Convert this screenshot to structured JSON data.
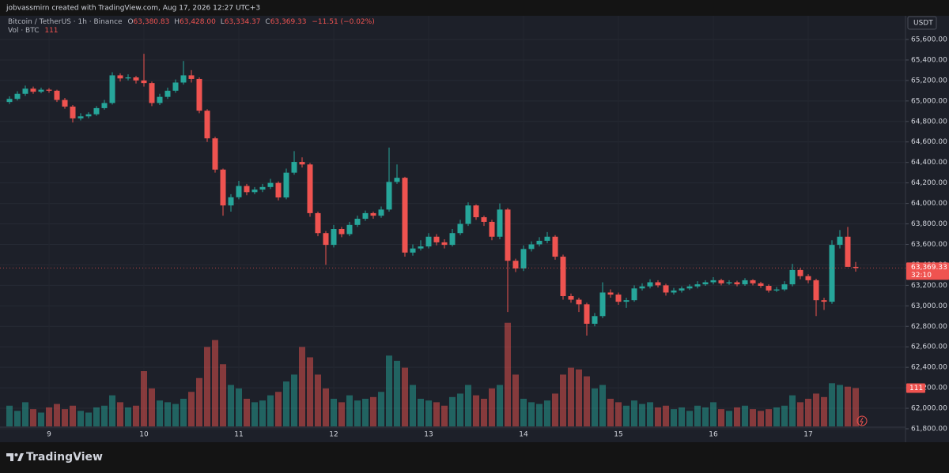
{
  "header": {
    "credit": "jobvassmirn created with TradingView.com, Aug 17, 2026 12:27 UTC+3"
  },
  "footer": {
    "brand": "TradingView"
  },
  "chart_data": {
    "type": "candlestick",
    "symbol": "Bitcoin / TetherUS · 1h · Binance",
    "legend_letters": [
      "O",
      "H",
      "L",
      "C"
    ],
    "legend_values": [
      "63,380.83",
      "63,428.00",
      "63,334.37",
      "63,369.33"
    ],
    "change_label": "−11.51 (−0.02%)",
    "volume_title": "Vol · BTC",
    "currency": "USDT",
    "last_price_label": "63,369.33",
    "countdown": "32:10",
    "up_color": "#26a69a",
    "down_color": "#ef5350",
    "grid": true,
    "ylim": [
      61800,
      65800
    ],
    "yticks": [
      {
        "value": 61800,
        "label": "61,800.00"
      },
      {
        "value": 62000,
        "label": "62,000.00"
      },
      {
        "value": 62200,
        "label": "62,200.00"
      },
      {
        "value": 62400,
        "label": "62,400.00"
      },
      {
        "value": 62600,
        "label": "62,600.00"
      },
      {
        "value": 62800,
        "label": "62,800.00"
      },
      {
        "value": 63000,
        "label": "63,000.00"
      },
      {
        "value": 63200,
        "label": "63,200.00"
      },
      {
        "value": 63400,
        "label": "63,400.00"
      },
      {
        "value": 63600,
        "label": "63,600.00"
      },
      {
        "value": 63800,
        "label": "63,800.00"
      },
      {
        "value": 64000,
        "label": "64,000.00"
      },
      {
        "value": 64200,
        "label": "64,200.00"
      },
      {
        "value": 64400,
        "label": "64,400.00"
      },
      {
        "value": 64600,
        "label": "64,600.00"
      },
      {
        "value": 64800,
        "label": "64,800.00"
      },
      {
        "value": 65000,
        "label": "65,000.00"
      },
      {
        "value": 65200,
        "label": "65,200.00"
      },
      {
        "value": 65400,
        "label": "65,400.00"
      },
      {
        "value": 65600,
        "label": "65,600.00"
      }
    ],
    "vlim": [
      0,
      320
    ],
    "categories": [
      null,
      null,
      null,
      null,
      null,
      "9",
      null,
      null,
      null,
      null,
      null,
      null,
      null,
      null,
      null,
      null,
      null,
      "10",
      null,
      null,
      null,
      null,
      null,
      null,
      null,
      null,
      null,
      null,
      null,
      "11",
      null,
      null,
      null,
      null,
      null,
      null,
      null,
      null,
      null,
      null,
      null,
      "12",
      null,
      null,
      null,
      null,
      null,
      null,
      null,
      null,
      null,
      null,
      null,
      "13",
      null,
      null,
      null,
      null,
      null,
      null,
      null,
      null,
      null,
      null,
      null,
      "14",
      null,
      null,
      null,
      null,
      null,
      null,
      null,
      null,
      null,
      null,
      null,
      "15",
      null,
      null,
      null,
      null,
      null,
      null,
      null,
      null,
      null,
      null,
      null,
      "16",
      null,
      null,
      null,
      null,
      null,
      null,
      null,
      null,
      null,
      null,
      null,
      "17",
      null,
      null,
      null,
      null,
      null,
      null
    ],
    "series": [
      {
        "name": "Bitcoin / TetherUS",
        "values": [
          [
            64990,
            65045,
            64970,
            65020
          ],
          [
            65020,
            65095,
            65005,
            65070
          ],
          [
            65070,
            65150,
            65050,
            65120
          ],
          [
            65120,
            65140,
            65070,
            65090
          ],
          [
            65090,
            65130,
            65075,
            65110
          ],
          [
            65110,
            65125,
            65080,
            65100
          ],
          [
            65100,
            65110,
            64990,
            65010
          ],
          [
            65010,
            65030,
            64925,
            64945
          ],
          [
            64945,
            64960,
            64790,
            64830
          ],
          [
            64830,
            64880,
            64810,
            64850
          ],
          [
            64850,
            64890,
            64830,
            64870
          ],
          [
            64870,
            64950,
            64855,
            64930
          ],
          [
            64930,
            65010,
            64915,
            64980
          ],
          [
            64980,
            65280,
            64965,
            65250
          ],
          [
            65250,
            65270,
            65190,
            65220
          ],
          [
            65220,
            65260,
            65200,
            65230
          ],
          [
            65230,
            65245,
            65170,
            65200
          ],
          [
            65200,
            65460,
            65140,
            65175
          ],
          [
            65175,
            65190,
            64950,
            64980
          ],
          [
            64980,
            65070,
            64960,
            65040
          ],
          [
            65040,
            65130,
            65020,
            65100
          ],
          [
            65100,
            65210,
            65080,
            65180
          ],
          [
            65180,
            65390,
            65160,
            65250
          ],
          [
            65250,
            65300,
            65180,
            65215
          ],
          [
            65215,
            65230,
            64880,
            64905
          ],
          [
            64905,
            64920,
            64600,
            64635
          ],
          [
            64635,
            64650,
            64300,
            64330
          ],
          [
            64330,
            64340,
            63880,
            63980
          ],
          [
            63980,
            64090,
            63920,
            64060
          ],
          [
            64060,
            64220,
            64040,
            64170
          ],
          [
            64170,
            64190,
            64080,
            64110
          ],
          [
            64110,
            64160,
            64090,
            64135
          ],
          [
            64135,
            64190,
            64110,
            64160
          ],
          [
            64160,
            64240,
            64140,
            64200
          ],
          [
            64200,
            64215,
            64030,
            64058
          ],
          [
            64058,
            64340,
            64040,
            64300
          ],
          [
            64300,
            64510,
            64280,
            64405
          ],
          [
            64405,
            64450,
            64350,
            64380
          ],
          [
            64380,
            64395,
            63870,
            63905
          ],
          [
            63905,
            63920,
            63680,
            63710
          ],
          [
            63710,
            63730,
            63400,
            63595
          ],
          [
            63595,
            63790,
            63570,
            63750
          ],
          [
            63750,
            63770,
            63670,
            63700
          ],
          [
            63700,
            63820,
            63680,
            63790
          ],
          [
            63790,
            63880,
            63770,
            63850
          ],
          [
            63850,
            63930,
            63830,
            63905
          ],
          [
            63905,
            63920,
            63850,
            63880
          ],
          [
            63880,
            63970,
            63860,
            63940
          ],
          [
            63940,
            64545,
            63920,
            64210
          ],
          [
            64210,
            64380,
            64190,
            64250
          ],
          [
            64250,
            64260,
            63480,
            63520
          ],
          [
            63520,
            63600,
            63490,
            63560
          ],
          [
            63560,
            63640,
            63540,
            63580
          ],
          [
            63580,
            63710,
            63560,
            63675
          ],
          [
            63675,
            63700,
            63590,
            63620
          ],
          [
            63620,
            63650,
            63560,
            63595
          ],
          [
            63595,
            63750,
            63580,
            63710
          ],
          [
            63710,
            63840,
            63690,
            63800
          ],
          [
            63800,
            64010,
            63780,
            63980
          ],
          [
            63980,
            63990,
            63840,
            63865
          ],
          [
            63865,
            63880,
            63780,
            63820
          ],
          [
            63820,
            63840,
            63640,
            63675
          ],
          [
            63675,
            64000,
            63650,
            63940
          ],
          [
            63940,
            63955,
            62940,
            63440
          ],
          [
            63440,
            63460,
            63330,
            63365
          ],
          [
            63365,
            63590,
            63340,
            63555
          ],
          [
            63555,
            63630,
            63530,
            63600
          ],
          [
            63600,
            63670,
            63580,
            63635
          ],
          [
            63635,
            63720,
            63610,
            63675
          ],
          [
            63675,
            63690,
            63450,
            63480
          ],
          [
            63480,
            63500,
            63060,
            63095
          ],
          [
            63095,
            63120,
            63030,
            63060
          ],
          [
            63060,
            63080,
            62940,
            63015
          ],
          [
            63015,
            63030,
            62710,
            62825
          ],
          [
            62825,
            62930,
            62800,
            62900
          ],
          [
            62900,
            63230,
            62880,
            63130
          ],
          [
            63130,
            63160,
            63080,
            63110
          ],
          [
            63110,
            63130,
            63010,
            63040
          ],
          [
            63040,
            63080,
            62980,
            63055
          ],
          [
            63055,
            63200,
            63040,
            63170
          ],
          [
            63170,
            63220,
            63150,
            63190
          ],
          [
            63190,
            63260,
            63170,
            63230
          ],
          [
            63230,
            63250,
            63180,
            63200
          ],
          [
            63200,
            63215,
            63100,
            63130
          ],
          [
            63130,
            63175,
            63110,
            63150
          ],
          [
            63150,
            63190,
            63130,
            63170
          ],
          [
            63170,
            63210,
            63155,
            63190
          ],
          [
            63190,
            63240,
            63170,
            63210
          ],
          [
            63210,
            63250,
            63195,
            63230
          ],
          [
            63230,
            63280,
            63210,
            63250
          ],
          [
            63250,
            63265,
            63200,
            63220
          ],
          [
            63220,
            63250,
            63205,
            63230
          ],
          [
            63230,
            63245,
            63190,
            63210
          ],
          [
            63210,
            63270,
            63195,
            63250
          ],
          [
            63250,
            63260,
            63200,
            63220
          ],
          [
            63220,
            63235,
            63175,
            63195
          ],
          [
            63195,
            63210,
            63130,
            63150
          ],
          [
            63150,
            63185,
            63135,
            63160
          ],
          [
            63160,
            63240,
            63145,
            63210
          ],
          [
            63210,
            63410,
            63190,
            63350
          ],
          [
            63350,
            63370,
            63260,
            63290
          ],
          [
            63290,
            63310,
            63220,
            63250
          ],
          [
            63250,
            63265,
            62900,
            63055
          ],
          [
            63055,
            63080,
            62960,
            63040
          ],
          [
            63040,
            63640,
            63020,
            63595
          ],
          [
            63595,
            63740,
            63560,
            63675
          ],
          [
            63675,
            63770,
            63520,
            63380.83
          ],
          [
            63380.83,
            63428.0,
            63334.37,
            63369.33
          ]
        ]
      }
    ],
    "volume": [
      60,
      45,
      70,
      50,
      40,
      55,
      65,
      50,
      60,
      45,
      40,
      55,
      60,
      90,
      70,
      55,
      60,
      160,
      110,
      75,
      70,
      65,
      80,
      100,
      140,
      230,
      250,
      180,
      120,
      110,
      80,
      70,
      75,
      90,
      100,
      130,
      150,
      230,
      200,
      150,
      110,
      80,
      70,
      90,
      75,
      80,
      85,
      100,
      205,
      190,
      170,
      120,
      80,
      75,
      70,
      60,
      85,
      95,
      120,
      90,
      80,
      110,
      120,
      300,
      150,
      80,
      70,
      65,
      75,
      95,
      150,
      170,
      165,
      145,
      110,
      120,
      80,
      70,
      60,
      75,
      65,
      70,
      55,
      60,
      50,
      55,
      45,
      60,
      55,
      70,
      50,
      45,
      55,
      60,
      50,
      45,
      50,
      55,
      60,
      90,
      70,
      80,
      95,
      85,
      125,
      120,
      115,
      111
    ]
  }
}
